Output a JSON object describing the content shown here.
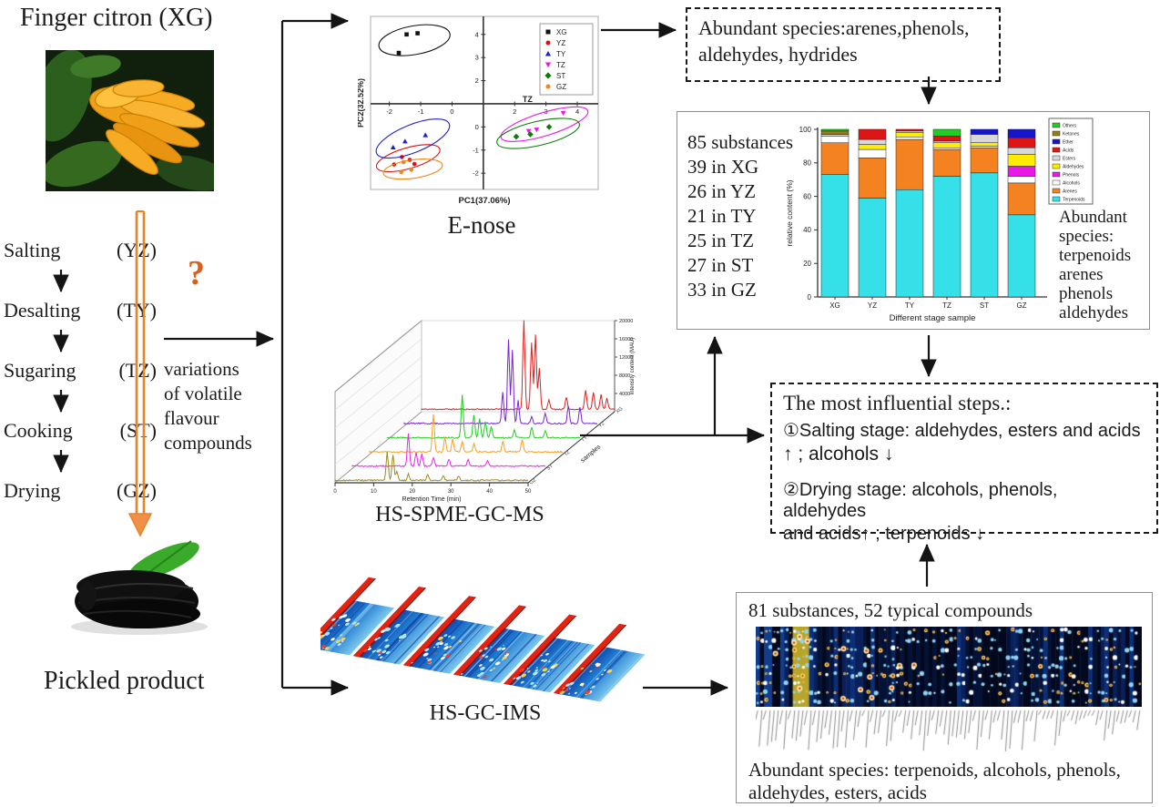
{
  "left": {
    "title": "Finger citron (XG)",
    "steps": [
      {
        "label": "Salting",
        "code": "(YZ)"
      },
      {
        "label": "Desalting",
        "code": "(TY)"
      },
      {
        "label": "Sugaring",
        "code": "(TZ)"
      },
      {
        "label": "Cooking",
        "code": "(ST)"
      },
      {
        "label": "Drying",
        "code": "(GZ)"
      }
    ],
    "question_mark": "?",
    "variation_lines": [
      "variations",
      "of volatile",
      "flavour",
      "compounds"
    ],
    "product_label": "Pickled product"
  },
  "methods": {
    "enose": "E-nose",
    "gcms": "HS-SPME-GC-MS",
    "ims": "HS-GC-IMS"
  },
  "enose_box": {
    "line1": "Abundant species:arenes,phenols,",
    "line2": "aldehydes, hydrides"
  },
  "bar_panel": {
    "stats": [
      "85 substances",
      "39 in XG",
      "26 in YZ",
      "21 in TY",
      "25 in TZ",
      "27 in ST",
      "33 in GZ"
    ],
    "abundant_lines": [
      "Abundant",
      "species:",
      "terpenoids",
      "arenes",
      "phenols",
      "aldehydes"
    ]
  },
  "influential_box": {
    "title": "The most influential steps.:",
    "item1_line1": "①Salting stage: aldehydes, esters and acids",
    "item1_line2": "↑ ; alcohols ↓",
    "item2_line1": "②Drying stage:  alcohols, phenols, aldehydes",
    "item2_line2": "and acids↑ ; terpenoids ↓"
  },
  "ims_panel": {
    "title": "81 substances, 52 typical compounds",
    "abundant_line1": "Abundant species:  terpenoids, alcohols, phenols,",
    "abundant_line2": "aldehydes, esters, acids"
  },
  "colors": {
    "accent_orange": "#e8832a",
    "question_orange": "#d95f1a",
    "arrow_black": "#141414"
  },
  "chart_data": [
    {
      "type": "scatter",
      "name": "E-nose PCA",
      "xlabel": "PC1(37.06%)",
      "ylabel": "PC2(32.52%)",
      "xlim": [
        -2.6,
        4.6
      ],
      "ylim": [
        -2.7,
        4.7
      ],
      "x_ticks": [
        -2,
        -1,
        0,
        2,
        3,
        4
      ],
      "y_ticks": [
        4,
        3,
        2,
        0,
        -1,
        -2
      ],
      "axis_cross": [
        1,
        1
      ],
      "annotation": "TZ",
      "legend_position": "top-right",
      "series": [
        {
          "name": "XG",
          "marker": "square",
          "color": "#111111",
          "points": [
            [
              -1.45,
              4.0
            ],
            [
              -1.1,
              4.05
            ],
            [
              -1.7,
              3.2
            ]
          ],
          "ellipse": [
            -1.2,
            3.75,
            1.15,
            0.62,
            -10
          ]
        },
        {
          "name": "YZ",
          "marker": "circle",
          "color": "#e01010",
          "points": [
            [
              -1.6,
              -1.3
            ],
            [
              -1.85,
              -1.62
            ],
            [
              -1.35,
              -1.42
            ],
            [
              -1.2,
              -1.6
            ]
          ],
          "ellipse": [
            -1.4,
            -1.35,
            1.05,
            0.45,
            -16
          ]
        },
        {
          "name": "TY",
          "marker": "triangle-up",
          "color": "#2020d0",
          "points": [
            [
              -0.85,
              -0.35
            ],
            [
              -1.5,
              -0.62
            ],
            [
              -1.88,
              -0.88
            ]
          ],
          "ellipse": [
            -1.25,
            -0.5,
            1.25,
            0.6,
            -22
          ]
        },
        {
          "name": "TZ",
          "marker": "triangle-down",
          "color": "#e818e8",
          "points": [
            [
              2.45,
              -0.18
            ],
            [
              2.7,
              -0.12
            ],
            [
              3.55,
              0.6
            ]
          ],
          "ellipse": [
            2.95,
            0.12,
            1.45,
            0.5,
            -17
          ]
        },
        {
          "name": "ST",
          "marker": "diamond",
          "color": "#0a7a0a",
          "points": [
            [
              2.05,
              -0.42
            ],
            [
              2.5,
              -0.32
            ],
            [
              3.1,
              0.0
            ]
          ],
          "ellipse": [
            2.75,
            -0.28,
            1.35,
            0.52,
            -13
          ]
        },
        {
          "name": "GZ",
          "marker": "circle",
          "color": "#f08818",
          "points": [
            [
              -1.55,
              -1.52
            ],
            [
              -1.62,
              -1.95
            ],
            [
              -1.3,
              -1.85
            ]
          ],
          "ellipse": [
            -1.25,
            -1.82,
            0.95,
            0.4,
            -8
          ]
        }
      ]
    },
    {
      "type": "bar",
      "stacked": true,
      "xlabel": "Different stage sample",
      "ylabel": "relative content (%)",
      "ylim": [
        0,
        100
      ],
      "y_ticks": [
        0,
        20,
        40,
        60,
        80,
        100
      ],
      "categories": [
        "XG",
        "YZ",
        "TY",
        "TZ",
        "ST",
        "GZ"
      ],
      "series": [
        {
          "name": "Terpenoids",
          "color": "#35e0e8",
          "values": [
            73,
            59,
            64,
            72,
            74,
            49
          ]
        },
        {
          "name": "Arenes",
          "color": "#f58220",
          "values": [
            19,
            24,
            30,
            16,
            15,
            19
          ]
        },
        {
          "name": "Alcohols",
          "color": "#ffffff",
          "values": [
            4,
            5,
            1.5,
            1,
            1,
            4
          ]
        },
        {
          "name": "Phenols",
          "color": "#e818e8",
          "values": [
            0,
            0,
            0,
            0,
            0,
            6
          ]
        },
        {
          "name": "Aldehydes",
          "color": "#ffec00",
          "values": [
            0,
            3,
            2.5,
            3,
            2,
            7
          ]
        },
        {
          "name": "Esters",
          "color": "#d8d8d8",
          "values": [
            1,
            3,
            1,
            1,
            5,
            4
          ]
        },
        {
          "name": "Acids",
          "color": "#dd1515",
          "values": [
            0,
            6,
            1,
            3,
            0,
            6
          ]
        },
        {
          "name": "Ether",
          "color": "#1515cc",
          "values": [
            0,
            0,
            0,
            0,
            3,
            5
          ]
        },
        {
          "name": "Ketones",
          "color": "#8f7d1e",
          "values": [
            2,
            0,
            0,
            0,
            0,
            0
          ]
        },
        {
          "name": "Others",
          "color": "#22cc22",
          "values": [
            1,
            0,
            0,
            4,
            0,
            0
          ]
        }
      ],
      "legend_order": [
        "Others",
        "Ketones",
        "Ether",
        "Acids",
        "Esters",
        "Aldehydes",
        "Phenols",
        "Alcohols",
        "Arenes",
        "Terpenoids"
      ]
    },
    {
      "type": "line",
      "name": "HS-SPME-GC-MS chromatograms (3D waterfall)",
      "xlabel": "Retention Time (min)",
      "x_ticks": [
        0,
        10,
        20,
        30,
        40,
        50
      ],
      "zlabel": "Intensity content (MAU)",
      "z_ticks": [
        4000,
        8000,
        12000,
        16000,
        20000
      ],
      "samples_axis_label": "samples",
      "series": [
        {
          "name": "XG",
          "color": "#e02020",
          "peaks": [
            [
              26.5,
              19500
            ],
            [
              28.5,
              14500
            ],
            [
              29.5,
              16500
            ],
            [
              30.5,
              9000
            ],
            [
              33,
              2000
            ],
            [
              37.5,
              2500
            ],
            [
              42.5,
              4200
            ],
            [
              44.5,
              3800
            ],
            [
              46.5,
              3200
            ],
            [
              48,
              2500
            ]
          ]
        },
        {
          "name": "YZ",
          "color": "#7a22dd",
          "peaks": [
            [
              25.5,
              7000
            ],
            [
              27,
              18500
            ],
            [
              28,
              16000
            ],
            [
              29.5,
              5000
            ],
            [
              33,
              1500
            ],
            [
              36.5,
              2200
            ],
            [
              42.5,
              4000
            ],
            [
              45.5,
              3500
            ]
          ]
        },
        {
          "name": "TY",
          "color": "#22cc22",
          "peaks": [
            [
              19.5,
              9500
            ],
            [
              22.5,
              5000
            ],
            [
              24,
              4200
            ],
            [
              25.5,
              3600
            ],
            [
              27,
              2500
            ],
            [
              33,
              1800
            ],
            [
              37.5,
              2200
            ],
            [
              41,
              1500
            ]
          ]
        },
        {
          "name": "TZ",
          "color": "#f5a020",
          "peaks": [
            [
              16.5,
              8200
            ],
            [
              19.5,
              3200
            ],
            [
              21.5,
              2800
            ],
            [
              24,
              2200
            ],
            [
              27,
              1800
            ],
            [
              34.5,
              2400
            ],
            [
              39.5,
              2800
            ]
          ]
        },
        {
          "name": "ST",
          "color": "#ee22ee",
          "peaks": [
            [
              14.5,
              7200
            ],
            [
              16.5,
              3000
            ],
            [
              18,
              2600
            ],
            [
              21,
              1800
            ],
            [
              25,
              1500
            ],
            [
              30,
              1400
            ],
            [
              35,
              1200
            ]
          ]
        },
        {
          "name": "GZ",
          "color": "#9a8a20",
          "peaks": [
            [
              13.5,
              6200
            ],
            [
              15,
              5600
            ],
            [
              16,
              2000
            ],
            [
              19,
              1400
            ],
            [
              24,
              1200
            ],
            [
              28,
              1000
            ],
            [
              32,
              900
            ]
          ]
        }
      ]
    }
  ]
}
